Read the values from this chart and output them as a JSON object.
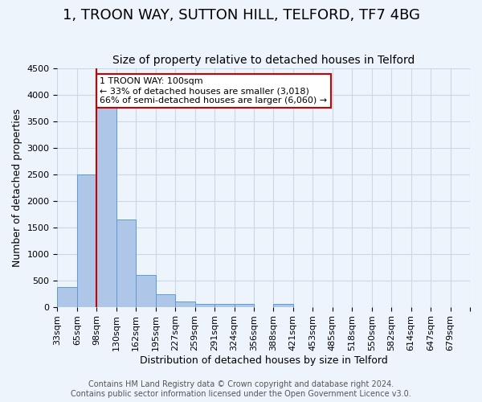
{
  "title": "1, TROON WAY, SUTTON HILL, TELFORD, TF7 4BG",
  "subtitle": "Size of property relative to detached houses in Telford",
  "xlabel": "Distribution of detached houses by size in Telford",
  "ylabel": "Number of detached properties",
  "bar_color": "#aec6e8",
  "bar_edge_color": "#5b9bd5",
  "grid_color": "#c8d8e8",
  "background_color": "#eef4fb",
  "bins": [
    "33sqm",
    "65sqm",
    "98sqm",
    "130sqm",
    "162sqm",
    "195sqm",
    "227sqm",
    "259sqm",
    "291sqm",
    "324sqm",
    "356sqm",
    "388sqm",
    "421sqm",
    "453sqm",
    "485sqm",
    "518sqm",
    "550sqm",
    "582sqm",
    "614sqm",
    "647sqm",
    "679sqm"
  ],
  "values": [
    380,
    2500,
    3750,
    1650,
    600,
    240,
    105,
    60,
    50,
    50,
    0,
    60,
    0,
    0,
    0,
    0,
    0,
    0,
    0,
    0,
    0
  ],
  "property_bar_idx": 2,
  "property_line_color": "#cc0000",
  "annotation_text": "1 TROON WAY: 100sqm\n← 33% of detached houses are smaller (3,018)\n66% of semi-detached houses are larger (6,060) →",
  "annotation_box_color": "#ffffff",
  "annotation_box_edge": "#cc0000",
  "footer_line1": "Contains HM Land Registry data © Crown copyright and database right 2024.",
  "footer_line2": "Contains public sector information licensed under the Open Government Licence v3.0.",
  "ylim": [
    0,
    4500
  ],
  "yticks": [
    0,
    500,
    1000,
    1500,
    2000,
    2500,
    3000,
    3500,
    4000,
    4500
  ],
  "title_fontsize": 13,
  "subtitle_fontsize": 10,
  "axis_label_fontsize": 9,
  "tick_fontsize": 8,
  "footer_fontsize": 7
}
